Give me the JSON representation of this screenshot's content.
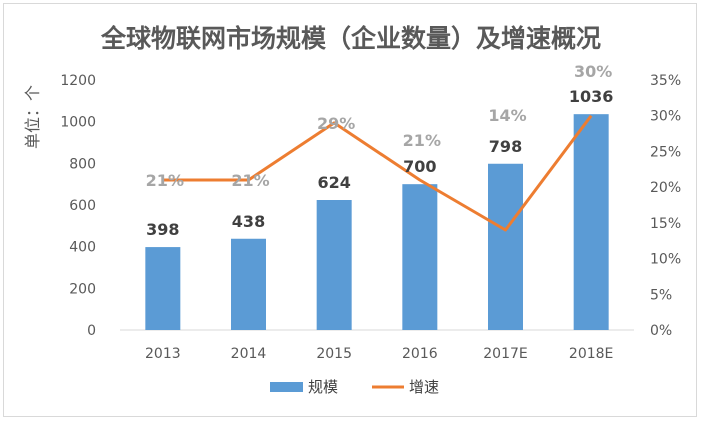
{
  "chart_data": {
    "type": "bar",
    "title": "全球物联网市场规模（企业数量）及增速概况",
    "ylabel": "单位：个",
    "categories": [
      "2013",
      "2014",
      "2015",
      "2016",
      "2017E",
      "2018E"
    ],
    "ylim": [
      0,
      1200
    ],
    "yticks": [
      "0",
      "200",
      "400",
      "600",
      "800",
      "1000",
      "1200"
    ],
    "y2lim": [
      0,
      35
    ],
    "y2ticks": [
      "0%",
      "5%",
      "10%",
      "15%",
      "20%",
      "25%",
      "30%",
      "35%"
    ],
    "series": [
      {
        "name": "规模",
        "type": "bar",
        "color": "#5b9bd5",
        "values": [
          398,
          438,
          624,
          700,
          798,
          1036
        ],
        "labels": [
          "398",
          "438",
          "624",
          "700",
          "798",
          "1036"
        ]
      },
      {
        "name": "增速",
        "type": "line",
        "axis": "secondary",
        "color": "#ed7d31",
        "values": [
          21,
          21,
          29,
          21,
          14,
          30
        ],
        "labels": [
          "21%",
          "21%",
          "29%",
          "21%",
          "14%",
          "30%"
        ]
      }
    ],
    "grid": false,
    "legend_position": "bottom"
  }
}
